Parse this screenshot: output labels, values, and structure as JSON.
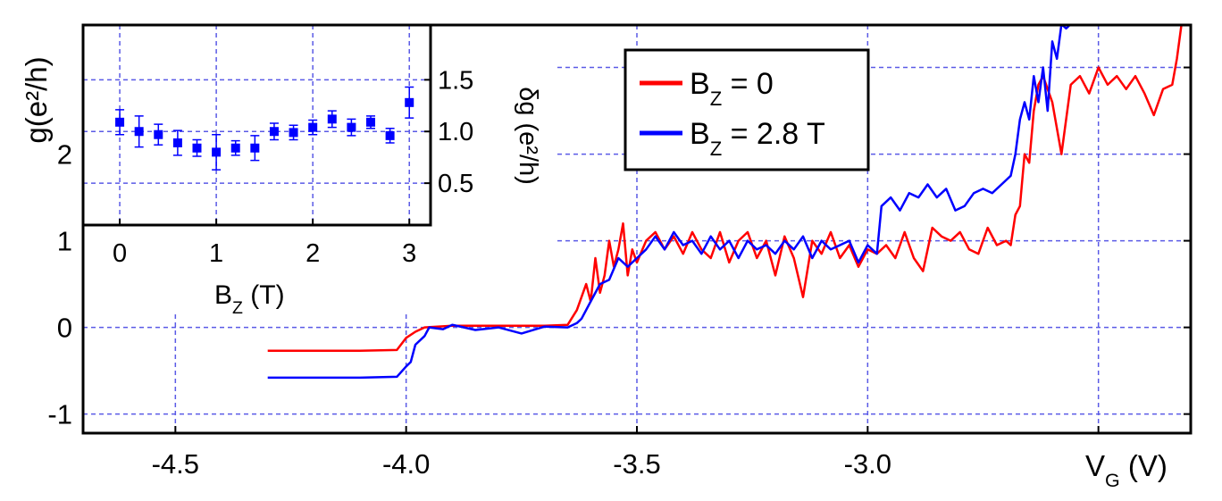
{
  "chart_data": [
    {
      "type": "line",
      "ylabel": "g(e²/h)",
      "xlabel": [
        "V",
        "G",
        " (V)"
      ],
      "xlim": [
        -4.7,
        -2.3
      ],
      "ylim": [
        -1.22,
        3.49
      ],
      "xticks": [
        -4.5,
        {
          "value": -4,
          "label": "-4.0"
        },
        -3.5,
        {
          "value": -3,
          "label": "-3.0"
        },
        {
          "value": -2.5,
          "label": null
        }
      ],
      "yticks": [
        -1,
        0,
        1,
        2,
        {
          "value": 3,
          "label": null
        }
      ],
      "grid": true,
      "series": [
        {
          "name": [
            "B",
            "Z",
            " = 0"
          ],
          "color": "#ff0000",
          "x": [
            -4.3,
            -4.1,
            -4.02,
            -4.0,
            -3.98,
            -3.96,
            -3.9,
            -3.8,
            -3.7,
            -3.65,
            -3.63,
            -3.61,
            -3.6,
            -3.59,
            -3.58,
            -3.57,
            -3.56,
            -3.55,
            -3.54,
            -3.53,
            -3.52,
            -3.51,
            -3.5,
            -3.48,
            -3.46,
            -3.44,
            -3.42,
            -3.4,
            -3.38,
            -3.36,
            -3.34,
            -3.32,
            -3.3,
            -3.28,
            -3.26,
            -3.24,
            -3.22,
            -3.2,
            -3.18,
            -3.16,
            -3.14,
            -3.12,
            -3.1,
            -3.08,
            -3.06,
            -3.04,
            -3.02,
            -3.0,
            -2.98,
            -2.96,
            -2.94,
            -2.92,
            -2.9,
            -2.88,
            -2.86,
            -2.84,
            -2.82,
            -2.8,
            -2.78,
            -2.76,
            -2.74,
            -2.72,
            -2.7,
            -2.69,
            -2.68,
            -2.67,
            -2.66,
            -2.65,
            -2.64,
            -2.63,
            -2.62,
            -2.6,
            -2.58,
            -2.56,
            -2.54,
            -2.52,
            -2.5,
            -2.48,
            -2.46,
            -2.44,
            -2.42,
            -2.4,
            -2.38,
            -2.36,
            -2.34,
            -2.33,
            -2.32
          ],
          "values": [
            -0.27,
            -0.27,
            -0.26,
            -0.12,
            -0.05,
            0.0,
            0.02,
            0.02,
            0.02,
            0.03,
            0.2,
            0.5,
            0.3,
            0.8,
            0.4,
            0.6,
            1.0,
            0.7,
            0.9,
            1.2,
            0.6,
            0.9,
            0.75,
            1.0,
            1.1,
            0.9,
            1.05,
            0.85,
            1.1,
            0.9,
            0.8,
            1.1,
            0.75,
            1.0,
            1.1,
            0.8,
            1.0,
            0.6,
            1.05,
            0.8,
            0.35,
            1.0,
            0.85,
            1.1,
            0.8,
            0.95,
            0.7,
            0.9,
            0.85,
            0.95,
            0.8,
            1.1,
            0.8,
            0.65,
            1.15,
            1.05,
            1.0,
            1.1,
            0.9,
            0.85,
            1.15,
            0.95,
            1.0,
            0.95,
            1.3,
            1.4,
            2.0,
            1.9,
            2.5,
            2.8,
            2.9,
            2.6,
            2.0,
            2.8,
            2.9,
            2.7,
            3.0,
            2.8,
            2.9,
            2.75,
            2.9,
            2.7,
            2.45,
            2.75,
            2.8,
            3.1,
            3.5
          ]
        },
        {
          "name": [
            "B",
            "Z",
            " = 2.8 T"
          ],
          "color": "#0000ff",
          "x": [
            -4.3,
            -4.1,
            -4.02,
            -4.0,
            -3.99,
            -3.98,
            -3.96,
            -3.95,
            -3.92,
            -3.9,
            -3.85,
            -3.8,
            -3.75,
            -3.7,
            -3.65,
            -3.63,
            -3.62,
            -3.6,
            -3.58,
            -3.56,
            -3.54,
            -3.52,
            -3.5,
            -3.48,
            -3.46,
            -3.44,
            -3.42,
            -3.4,
            -3.38,
            -3.36,
            -3.34,
            -3.32,
            -3.3,
            -3.28,
            -3.26,
            -3.24,
            -3.22,
            -3.2,
            -3.18,
            -3.16,
            -3.14,
            -3.12,
            -3.1,
            -3.08,
            -3.06,
            -3.04,
            -3.02,
            -3.0,
            -2.98,
            -2.97,
            -2.95,
            -2.93,
            -2.91,
            -2.89,
            -2.87,
            -2.85,
            -2.83,
            -2.81,
            -2.79,
            -2.77,
            -2.75,
            -2.73,
            -2.71,
            -2.69,
            -2.68,
            -2.67,
            -2.66,
            -2.65,
            -2.64,
            -2.63,
            -2.62,
            -2.61,
            -2.6,
            -2.59,
            -2.58,
            -2.57,
            -2.56
          ],
          "values": [
            -0.58,
            -0.58,
            -0.57,
            -0.45,
            -0.4,
            -0.2,
            -0.1,
            0.0,
            -0.02,
            0.03,
            -0.03,
            0.0,
            -0.07,
            0.01,
            0.0,
            0.05,
            0.1,
            0.3,
            0.5,
            0.55,
            0.8,
            0.7,
            0.8,
            0.9,
            1.05,
            0.9,
            1.1,
            0.95,
            1.0,
            0.85,
            1.05,
            0.9,
            1.0,
            0.8,
            1.0,
            0.9,
            0.95,
            0.85,
            1.0,
            0.9,
            1.05,
            0.8,
            1.0,
            0.9,
            0.95,
            1.0,
            0.75,
            0.95,
            0.85,
            1.4,
            1.5,
            1.35,
            1.55,
            1.5,
            1.65,
            1.5,
            1.6,
            1.35,
            1.4,
            1.55,
            1.6,
            1.55,
            1.65,
            1.75,
            2.0,
            2.4,
            2.6,
            2.4,
            2.9,
            2.6,
            3.0,
            2.5,
            3.3,
            3.1,
            3.5,
            3.45,
            3.5
          ]
        }
      ]
    },
    {
      "type": "scatter",
      "xlabel": [
        "B",
        "Z",
        " (T)"
      ],
      "ylabel": "δg (e²/h)",
      "xlim": [
        -0.38,
        3.22
      ],
      "ylim": [
        0.095,
        2.03
      ],
      "xticks": [
        0,
        1,
        2,
        3
      ],
      "yticks": [
        {
          "value": 0.5,
          "label": "0.5"
        },
        {
          "value": 1,
          "label": "1.0"
        },
        {
          "value": 1.5,
          "label": "1.5"
        }
      ],
      "grid": true,
      "color": "#0000ff",
      "x": [
        0,
        0.2,
        0.4,
        0.6,
        0.8,
        1.0,
        1.2,
        1.4,
        1.6,
        1.8,
        2.0,
        2.2,
        2.4,
        2.6,
        2.8,
        3.0
      ],
      "values": [
        1.09,
        1.0,
        0.97,
        0.89,
        0.84,
        0.8,
        0.84,
        0.84,
        1.0,
        0.99,
        1.04,
        1.12,
        1.04,
        1.09,
        0.96,
        1.28
      ],
      "errors": [
        0.12,
        0.15,
        0.1,
        0.12,
        0.08,
        0.17,
        0.07,
        0.12,
        0.08,
        0.07,
        0.07,
        0.08,
        0.08,
        0.06,
        0.07,
        0.15
      ]
    }
  ]
}
